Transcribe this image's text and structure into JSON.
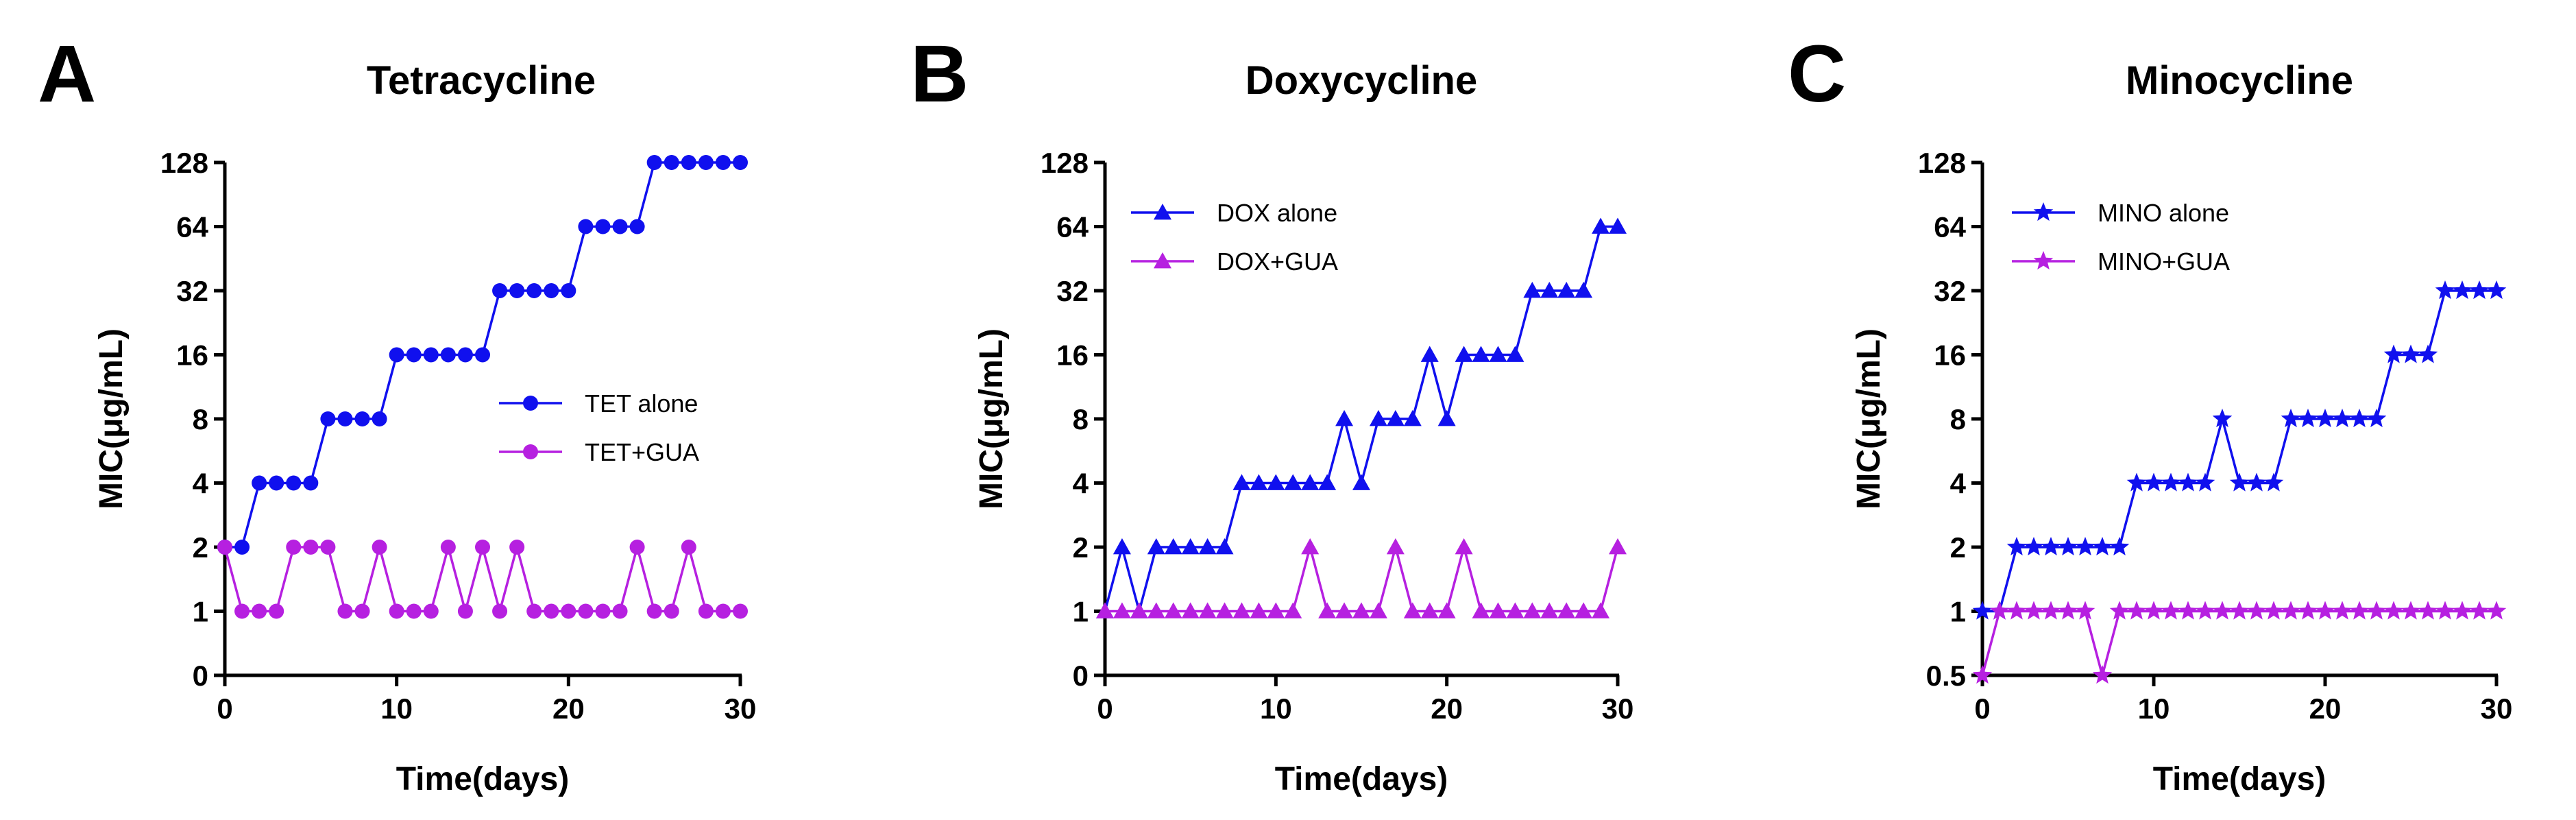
{
  "colors": {
    "blue": "#1010ee",
    "magenta": "#b620e0",
    "axis": "#000000"
  },
  "chart_data": [
    {
      "type": "line",
      "panel": "A",
      "title": "Tetracycline",
      "xlabel": "Time(days)",
      "ylabel": "MIC(μg/mL)",
      "xlim": [
        0,
        30
      ],
      "xticks": [
        0,
        10,
        20,
        30
      ],
      "ytick_labels": [
        "0",
        "1",
        "2",
        "4",
        "8",
        "16",
        "32",
        "64",
        "128"
      ],
      "y_scale": "log2 (bottom tick labeled 0)",
      "legend_position": "center-right",
      "series": [
        {
          "name": "TET alone",
          "color": "#1010ee",
          "marker": "circle",
          "x": [
            0,
            1,
            2,
            3,
            4,
            5,
            6,
            7,
            8,
            9,
            10,
            11,
            12,
            13,
            14,
            15,
            16,
            17,
            18,
            19,
            20,
            21,
            22,
            23,
            24,
            25,
            26,
            27,
            28,
            29,
            30
          ],
          "values": [
            2,
            2,
            4,
            4,
            4,
            4,
            8,
            8,
            8,
            8,
            16,
            16,
            16,
            16,
            16,
            16,
            32,
            32,
            32,
            32,
            32,
            64,
            64,
            64,
            64,
            128,
            128,
            128,
            128,
            128,
            128
          ]
        },
        {
          "name": "TET+GUA",
          "color": "#b620e0",
          "marker": "circle",
          "x": [
            0,
            1,
            2,
            3,
            4,
            5,
            6,
            7,
            8,
            9,
            10,
            11,
            12,
            13,
            14,
            15,
            16,
            17,
            18,
            19,
            20,
            21,
            22,
            23,
            24,
            25,
            26,
            27,
            28,
            29,
            30
          ],
          "values": [
            2,
            1,
            1,
            1,
            2,
            2,
            2,
            1,
            1,
            2,
            1,
            1,
            1,
            2,
            1,
            2,
            1,
            2,
            1,
            1,
            1,
            1,
            1,
            1,
            2,
            1,
            1,
            2,
            1,
            1,
            1
          ]
        }
      ]
    },
    {
      "type": "line",
      "panel": "B",
      "title": "Doxycycline",
      "xlabel": "Time(days)",
      "ylabel": "MIC(μg/mL)",
      "xlim": [
        0,
        30
      ],
      "xticks": [
        0,
        10,
        20,
        30
      ],
      "ytick_labels": [
        "0",
        "1",
        "2",
        "4",
        "8",
        "16",
        "32",
        "64",
        "128"
      ],
      "y_scale": "log2 (bottom tick labeled 0)",
      "legend_position": "top-left",
      "series": [
        {
          "name": "DOX alone",
          "color": "#1010ee",
          "marker": "triangle",
          "x": [
            0,
            1,
            2,
            3,
            4,
            5,
            6,
            7,
            8,
            9,
            10,
            11,
            12,
            13,
            14,
            15,
            16,
            17,
            18,
            19,
            20,
            21,
            22,
            23,
            24,
            25,
            26,
            27,
            28,
            29,
            30
          ],
          "values": [
            1,
            2,
            1,
            2,
            2,
            2,
            2,
            2,
            4,
            4,
            4,
            4,
            4,
            4,
            8,
            4,
            8,
            8,
            8,
            16,
            8,
            16,
            16,
            16,
            16,
            32,
            32,
            32,
            32,
            64,
            64
          ]
        },
        {
          "name": "DOX+GUA",
          "color": "#b620e0",
          "marker": "triangle",
          "x": [
            0,
            1,
            2,
            3,
            4,
            5,
            6,
            7,
            8,
            9,
            10,
            11,
            12,
            13,
            14,
            15,
            16,
            17,
            18,
            19,
            20,
            21,
            22,
            23,
            24,
            25,
            26,
            27,
            28,
            29,
            30
          ],
          "values": [
            1,
            1,
            1,
            1,
            1,
            1,
            1,
            1,
            1,
            1,
            1,
            1,
            2,
            1,
            1,
            1,
            1,
            2,
            1,
            1,
            1,
            2,
            1,
            1,
            1,
            1,
            1,
            1,
            1,
            1,
            2
          ]
        }
      ]
    },
    {
      "type": "line",
      "panel": "C",
      "title": "Minocycline",
      "xlabel": "Time(days)",
      "ylabel": "MIC(μg/mL)",
      "xlim": [
        0,
        30
      ],
      "xticks": [
        0,
        10,
        20,
        30
      ],
      "ytick_labels": [
        "0.5",
        "1",
        "2",
        "4",
        "8",
        "16",
        "32",
        "64",
        "128"
      ],
      "y_scale": "log2",
      "legend_position": "top-left",
      "series": [
        {
          "name": "MINO alone",
          "color": "#1010ee",
          "marker": "star",
          "x": [
            0,
            1,
            2,
            3,
            4,
            5,
            6,
            7,
            8,
            9,
            10,
            11,
            12,
            13,
            14,
            15,
            16,
            17,
            18,
            19,
            20,
            21,
            22,
            23,
            24,
            25,
            26,
            27,
            28,
            29,
            30
          ],
          "values": [
            1,
            1,
            2,
            2,
            2,
            2,
            2,
            2,
            2,
            4,
            4,
            4,
            4,
            4,
            8,
            4,
            4,
            4,
            8,
            8,
            8,
            8,
            8,
            8,
            16,
            16,
            16,
            32,
            32,
            32,
            32
          ]
        },
        {
          "name": "MINO+GUA",
          "color": "#b620e0",
          "marker": "star",
          "x": [
            0,
            1,
            2,
            3,
            4,
            5,
            6,
            7,
            8,
            9,
            10,
            11,
            12,
            13,
            14,
            15,
            16,
            17,
            18,
            19,
            20,
            21,
            22,
            23,
            24,
            25,
            26,
            27,
            28,
            29,
            30
          ],
          "values": [
            0.5,
            1,
            1,
            1,
            1,
            1,
            1,
            0.5,
            1,
            1,
            1,
            1,
            1,
            1,
            1,
            1,
            1,
            1,
            1,
            1,
            1,
            1,
            1,
            1,
            1,
            1,
            1,
            1,
            1,
            1,
            1
          ]
        }
      ]
    }
  ]
}
